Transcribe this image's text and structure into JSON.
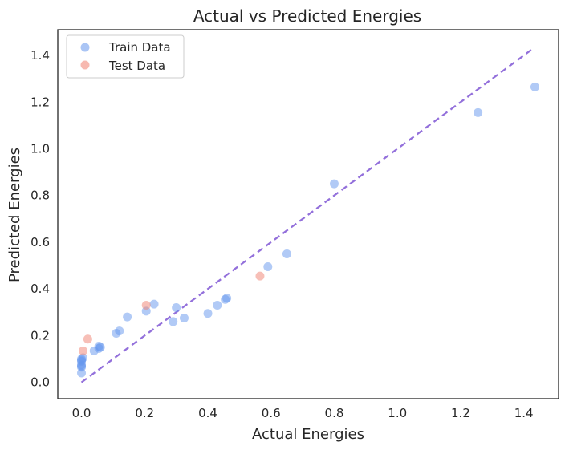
{
  "chart_data": {
    "type": "scatter",
    "title": "Actual vs Predicted Energies",
    "xlabel": "Actual Energies",
    "ylabel": "Predicted Energies",
    "xlim": [
      -0.075,
      1.51
    ],
    "ylim": [
      -0.07,
      1.51
    ],
    "xticks": [
      "0.0",
      "0.2",
      "0.4",
      "0.6",
      "0.8",
      "1.0",
      "1.2",
      "1.4"
    ],
    "yticks": [
      "0.0",
      "0.2",
      "0.4",
      "0.6",
      "0.8",
      "1.0",
      "1.2",
      "1.4"
    ],
    "grid": false,
    "legend_position": "top-left",
    "reference_line": {
      "style": "dashed",
      "color": "#9370DB",
      "x": [
        0.0,
        1.43
      ],
      "y": [
        0.0,
        1.43
      ]
    },
    "series": [
      {
        "name": "Train Data",
        "color": "#6495ED",
        "points": [
          [
            0.0,
            0.04
          ],
          [
            0.0,
            0.065
          ],
          [
            0.0,
            0.07
          ],
          [
            0.0,
            0.075
          ],
          [
            0.0,
            0.09
          ],
          [
            0.0,
            0.095
          ],
          [
            0.0,
            0.1
          ],
          [
            0.005,
            0.105
          ],
          [
            0.04,
            0.135
          ],
          [
            0.055,
            0.145
          ],
          [
            0.055,
            0.155
          ],
          [
            0.06,
            0.15
          ],
          [
            0.11,
            0.21
          ],
          [
            0.12,
            0.22
          ],
          [
            0.145,
            0.28
          ],
          [
            0.205,
            0.305
          ],
          [
            0.23,
            0.335
          ],
          [
            0.29,
            0.26
          ],
          [
            0.3,
            0.32
          ],
          [
            0.325,
            0.275
          ],
          [
            0.4,
            0.295
          ],
          [
            0.43,
            0.33
          ],
          [
            0.455,
            0.355
          ],
          [
            0.46,
            0.36
          ],
          [
            0.59,
            0.495
          ],
          [
            0.65,
            0.55
          ],
          [
            0.8,
            0.85
          ],
          [
            1.255,
            1.155
          ],
          [
            1.435,
            1.265
          ]
        ]
      },
      {
        "name": "Test Data",
        "color": "#F08070",
        "points": [
          [
            0.005,
            0.135
          ],
          [
            0.02,
            0.185
          ],
          [
            0.205,
            0.33
          ],
          [
            0.565,
            0.455
          ]
        ]
      }
    ]
  }
}
